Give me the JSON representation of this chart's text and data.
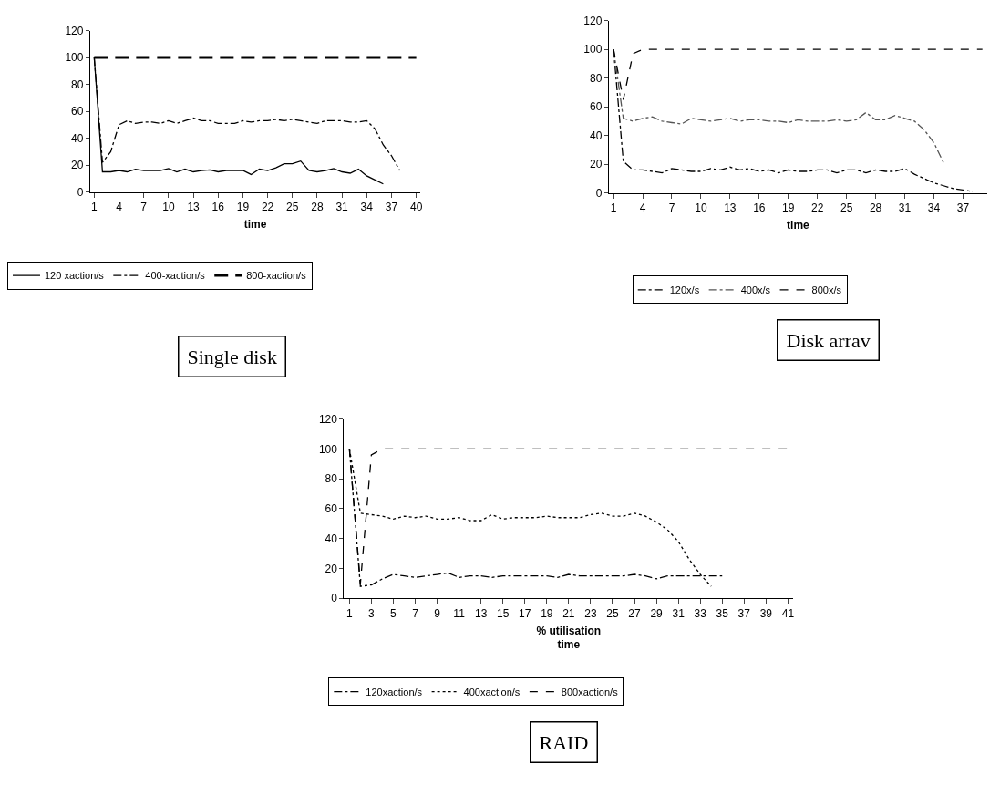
{
  "chart_data": [
    {
      "type": "line",
      "title": "Single disk",
      "xlabel": "time",
      "xlim": [
        0.5,
        40.5
      ],
      "xticks": [
        1,
        4,
        7,
        10,
        13,
        16,
        19,
        22,
        25,
        28,
        31,
        34,
        37,
        40
      ],
      "ylim": [
        0,
        120
      ],
      "yticks": [
        0,
        20,
        40,
        60,
        80,
        100,
        120
      ],
      "legend": "bottom",
      "marker": "none",
      "series": [
        {
          "name": "120 xaction/s",
          "color": "#000000",
          "line_style": "solid",
          "x": [
            1,
            2,
            3,
            4,
            5,
            6,
            7,
            8,
            9,
            10,
            11,
            12,
            13,
            14,
            15,
            16,
            17,
            18,
            19,
            20,
            21,
            22,
            23,
            24,
            25,
            26,
            27,
            28,
            29,
            30,
            31,
            32,
            33,
            34,
            35,
            36
          ],
          "values": [
            100,
            15,
            15,
            16,
            15,
            17,
            16,
            16,
            16,
            17.5,
            15,
            17,
            15,
            16,
            16.5,
            15,
            16,
            16,
            16,
            13,
            17,
            16,
            18,
            21,
            21,
            23,
            16,
            15,
            16,
            17.5,
            15,
            14,
            17,
            12,
            9,
            6
          ]
        },
        {
          "name": "400-xaction/s",
          "color": "#000000",
          "line_style": "dashdot",
          "x": [
            1,
            2,
            3,
            4,
            5,
            6,
            7,
            8,
            9,
            10,
            11,
            12,
            13,
            14,
            15,
            16,
            17,
            18,
            19,
            20,
            21,
            22,
            23,
            24,
            25,
            26,
            27,
            28,
            29,
            30,
            31,
            32,
            33,
            34,
            35,
            36,
            37,
            38
          ],
          "values": [
            100,
            22,
            30,
            50,
            53,
            51,
            52,
            52,
            51,
            53,
            51,
            53,
            55,
            53,
            53,
            51,
            51,
            51,
            53,
            52,
            53,
            53,
            54,
            53,
            54,
            53,
            52,
            51,
            53,
            53,
            53,
            52,
            52,
            53,
            47,
            35,
            27,
            16
          ]
        },
        {
          "name": "800-xaction/s",
          "color": "#000000",
          "line_style": "longdash",
          "x": [
            1,
            2,
            3,
            4,
            5,
            6,
            7,
            8,
            9,
            10,
            11,
            12,
            13,
            14,
            15,
            16,
            17,
            18,
            19,
            20,
            21,
            22,
            23,
            24,
            25,
            26,
            27,
            28,
            29,
            30,
            31,
            32,
            33,
            34,
            35,
            36,
            37,
            38,
            39,
            40
          ],
          "values": [
            100,
            100,
            100,
            100,
            100,
            100,
            100,
            100,
            100,
            100,
            100,
            100,
            100,
            100,
            100,
            100,
            100,
            100,
            100,
            100,
            100,
            100,
            100,
            100,
            100,
            100,
            100,
            100,
            100,
            100,
            100,
            100,
            100,
            100,
            100,
            100,
            100,
            100,
            100,
            100
          ]
        }
      ]
    },
    {
      "type": "line",
      "title": "Disk arrav",
      "xlabel": "time",
      "xlim": [
        0.5,
        39.5
      ],
      "xticks": [
        1,
        4,
        7,
        10,
        13,
        16,
        19,
        22,
        25,
        28,
        31,
        34,
        37
      ],
      "ylim": [
        0,
        120
      ],
      "yticks": [
        0,
        20,
        40,
        60,
        80,
        100,
        120
      ],
      "legend": "bottom",
      "marker": "none",
      "series": [
        {
          "name": "120x/s",
          "color": "#000000",
          "line_style": "dashdot",
          "x": [
            1,
            2,
            3,
            4,
            5,
            6,
            7,
            8,
            9,
            10,
            11,
            12,
            13,
            14,
            15,
            16,
            17,
            18,
            19,
            20,
            21,
            22,
            23,
            24,
            25,
            26,
            27,
            28,
            29,
            30,
            31,
            32,
            33,
            34,
            35,
            36,
            37,
            38
          ],
          "values": [
            100,
            22,
            16,
            16,
            15,
            14,
            17,
            16,
            15,
            15,
            17,
            16,
            18,
            16,
            17,
            15,
            16,
            14,
            16,
            15,
            15,
            16,
            16,
            14,
            16,
            16,
            14,
            16,
            15,
            15,
            17,
            13,
            10,
            7,
            5,
            3,
            2,
            1
          ]
        },
        {
          "name": "400x/s",
          "color": "#555555",
          "line_style": "dashdot",
          "x": [
            1,
            2,
            3,
            4,
            5,
            6,
            7,
            8,
            9,
            10,
            11,
            12,
            13,
            14,
            15,
            16,
            17,
            18,
            19,
            20,
            21,
            22,
            23,
            24,
            25,
            26,
            27,
            28,
            29,
            30,
            31,
            32,
            33,
            34,
            35
          ],
          "values": [
            100,
            52,
            50,
            52,
            53,
            50,
            49,
            48,
            52,
            51,
            50,
            51,
            52,
            50,
            51,
            51,
            50,
            50,
            49,
            51,
            50,
            50,
            50,
            51,
            50,
            51,
            56,
            51,
            51,
            54,
            52,
            50,
            44,
            35,
            21
          ]
        },
        {
          "name": "800x/s",
          "color": "#000000",
          "line_style": "dashed",
          "x": [
            1,
            2,
            3,
            4,
            5,
            6,
            7,
            8,
            9,
            10,
            11,
            12,
            13,
            14,
            15,
            16,
            17,
            18,
            19,
            20,
            21,
            22,
            23,
            24,
            25,
            26,
            27,
            28,
            29,
            30,
            31,
            32,
            33,
            34,
            35,
            36,
            37,
            38,
            39
          ],
          "values": [
            100,
            65,
            97,
            100,
            100,
            100,
            100,
            100,
            100,
            100,
            100,
            100,
            100,
            100,
            100,
            100,
            100,
            100,
            100,
            100,
            100,
            100,
            100,
            100,
            100,
            100,
            100,
            100,
            100,
            100,
            100,
            100,
            100,
            100,
            100,
            100,
            100,
            100,
            100
          ]
        }
      ]
    },
    {
      "type": "line",
      "title": "RAID",
      "xlabel": "% utilisation\ntime",
      "xlim": [
        0.5,
        41.5
      ],
      "xticks": [
        1,
        3,
        5,
        7,
        9,
        11,
        13,
        15,
        17,
        19,
        21,
        23,
        25,
        27,
        29,
        31,
        33,
        35,
        37,
        39,
        41
      ],
      "ylim": [
        0,
        120
      ],
      "yticks": [
        0,
        20,
        40,
        60,
        80,
        100,
        120
      ],
      "legend": "bottom",
      "marker": "none",
      "series": [
        {
          "name": "120xaction/s",
          "color": "#000000",
          "line_style": "dashdot",
          "x": [
            1,
            2,
            3,
            4,
            5,
            6,
            7,
            8,
            9,
            10,
            11,
            12,
            13,
            14,
            15,
            16,
            17,
            18,
            19,
            20,
            21,
            22,
            23,
            24,
            25,
            26,
            27,
            28,
            29,
            30,
            31,
            32,
            33,
            34,
            35
          ],
          "values": [
            100,
            8,
            9,
            13,
            16,
            15,
            14,
            15,
            16,
            17,
            14,
            15,
            15,
            14,
            15,
            15,
            15,
            15,
            15,
            14,
            16,
            15,
            15,
            15,
            15,
            15,
            16,
            15,
            13,
            15,
            15,
            15,
            15,
            15,
            15
          ]
        },
        {
          "name": "400xaction/s",
          "color": "#000000",
          "line_style": "dotted",
          "x": [
            1,
            2,
            3,
            4,
            5,
            6,
            7,
            8,
            9,
            10,
            11,
            12,
            13,
            14,
            15,
            16,
            17,
            18,
            19,
            20,
            21,
            22,
            23,
            24,
            25,
            26,
            27,
            28,
            29,
            30,
            31,
            32,
            33,
            34
          ],
          "values": [
            100,
            57,
            56,
            55,
            53,
            55,
            54,
            55,
            53,
            53,
            54,
            52,
            52,
            56,
            53,
            54,
            54,
            54,
            55,
            54,
            54,
            54,
            56,
            57,
            55,
            55,
            57,
            55,
            51,
            46,
            38,
            26,
            16,
            8
          ]
        },
        {
          "name": "800xaction/s",
          "color": "#000000",
          "line_style": "dashed",
          "x": [
            1,
            2,
            3,
            4,
            5,
            6,
            7,
            8,
            9,
            10,
            11,
            12,
            13,
            14,
            15,
            16,
            17,
            18,
            19,
            20,
            21,
            22,
            23,
            24,
            25,
            26,
            27,
            28,
            29,
            30,
            31,
            32,
            33,
            34,
            35,
            36,
            37,
            38,
            39,
            40,
            41
          ],
          "values": [
            100,
            10,
            96,
            100,
            100,
            100,
            100,
            100,
            100,
            100,
            100,
            100,
            100,
            100,
            100,
            100,
            100,
            100,
            100,
            100,
            100,
            100,
            100,
            100,
            100,
            100,
            100,
            100,
            100,
            100,
            100,
            100,
            100,
            100,
            100,
            100,
            100,
            100,
            100,
            100,
            100
          ]
        }
      ]
    }
  ]
}
